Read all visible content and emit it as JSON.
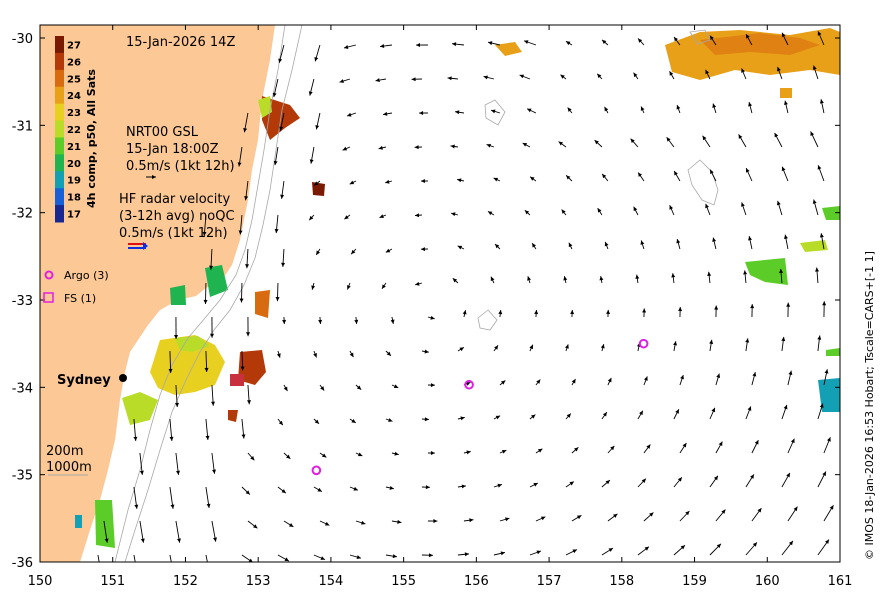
{
  "map": {
    "timestamp": "15-Jan-2026 14Z",
    "credit": "© IMOS 18-Jan-2026 16:53 Hobart; Tscale=CARS+[-1 1]",
    "x_ticks": [
      "150",
      "151",
      "152",
      "153",
      "154",
      "155",
      "156",
      "157",
      "158",
      "159",
      "160",
      "161"
    ],
    "y_ticks": [
      "-30",
      "-31",
      "-32",
      "-33",
      "-34",
      "-35",
      "-36"
    ],
    "colorbar": {
      "title": "4h comp, p50, All Sats",
      "ticks": [
        "27",
        "26",
        "25",
        "24",
        "23",
        "22",
        "21",
        "20",
        "19",
        "18",
        "17"
      ],
      "colors": [
        "#7a1a00",
        "#b33a08",
        "#d86a10",
        "#e8a018",
        "#e8d020",
        "#b8dc28",
        "#5ccc28",
        "#20b450",
        "#14a0b4",
        "#1860d8",
        "#182890"
      ]
    },
    "gsl_legend": {
      "line1": "NRT00 GSL",
      "line2": "15-Jan 18:00Z",
      "line3": "0.5m/s (1kt 12h)"
    },
    "hf_legend": {
      "line1": "HF radar velocity",
      "line2": "(3-12h avg) noQC",
      "line3": "0.5m/s (1kt 12h)"
    },
    "platforms": [
      {
        "label": "Argo (3)",
        "color": "#e020e0"
      },
      {
        "label": "FS (1)",
        "color": "#e020e0"
      }
    ],
    "city": "Sydney",
    "depth_labels": [
      "200m",
      "1000m"
    ],
    "argo_floats": [
      {
        "lon": 158.3,
        "lat": -33.5
      },
      {
        "lon": 155.9,
        "lat": -33.97
      },
      {
        "lon": 153.8,
        "lat": -34.95
      }
    ],
    "land_color": "#fcc896"
  }
}
